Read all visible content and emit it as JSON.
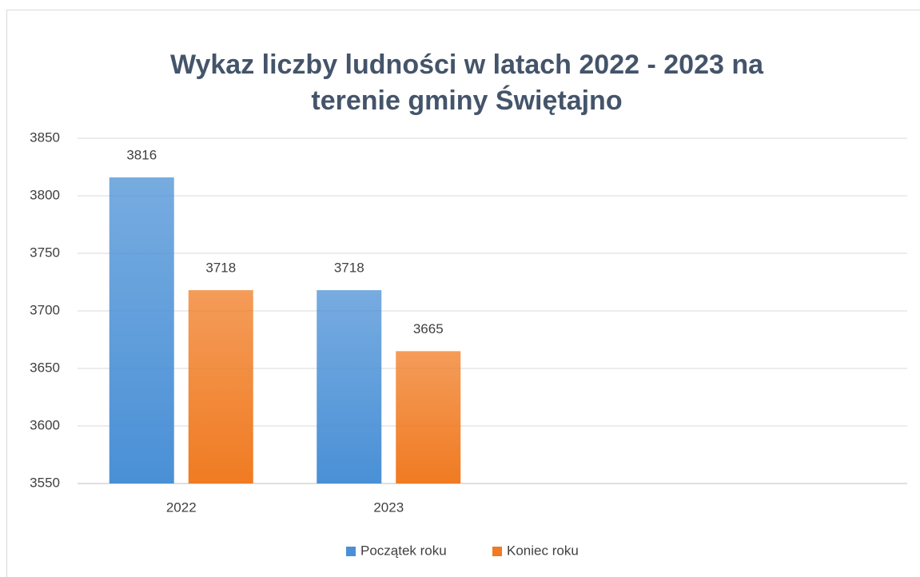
{
  "chart_data": {
    "type": "bar",
    "title": [
      "Wykaz liczby ludności w latach 2022 - 2023 na",
      "terenie gminy Świętajno"
    ],
    "categories": [
      "2022",
      "2023",
      null,
      null
    ],
    "series": [
      {
        "name": "Początek roku",
        "color": "#4a90d6",
        "values": [
          3816,
          3718,
          null,
          null
        ]
      },
      {
        "name": "Koniec roku",
        "color": "#f07b22",
        "values": [
          3718,
          3665,
          null,
          null
        ]
      }
    ],
    "ylim": [
      3550,
      3850
    ],
    "yticks": [
      3550,
      3600,
      3650,
      3700,
      3750,
      3800,
      3850
    ],
    "grid": true,
    "legend": "bottom",
    "data_labels": true
  }
}
